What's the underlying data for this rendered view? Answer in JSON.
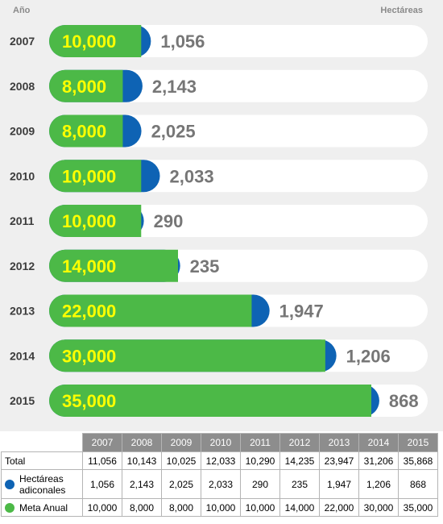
{
  "chart_data": {
    "type": "bar",
    "orientation": "horizontal",
    "stacked": true,
    "header_left": "Año",
    "header_right": "Hectáreas",
    "categories": [
      "2007",
      "2008",
      "2009",
      "2010",
      "2011",
      "2012",
      "2013",
      "2014",
      "2015"
    ],
    "series": [
      {
        "name": "Meta Anual",
        "values": [
          10000,
          8000,
          8000,
          10000,
          10000,
          14000,
          22000,
          30000,
          35000
        ],
        "labels": [
          "10,000",
          "8,000",
          "8,000",
          "10,000",
          "10,000",
          "14,000",
          "22,000",
          "30,000",
          "35,000"
        ],
        "color": "#4cb947",
        "label_color": "#ffff00"
      },
      {
        "name": "Hectáreas adicionales",
        "values": [
          1056,
          2143,
          2025,
          2033,
          290,
          235,
          1947,
          1206,
          868
        ],
        "labels": [
          "1,056",
          "2,143",
          "2,025",
          "2,033",
          "290",
          "235",
          "1,947",
          "1,206",
          "868"
        ],
        "color": "#0e63b4",
        "label_color": "#767676"
      }
    ],
    "xlim": [
      0,
      40000
    ],
    "track_color": "#ffffff",
    "background_color": "#efefef",
    "grid": false
  },
  "table": {
    "row_labels": {
      "total": "Total",
      "adicionales_line1": "Hectáreas",
      "adicionales_line2": "adiconales",
      "meta": "Meta Anual"
    },
    "totals": [
      "11,056",
      "10,143",
      "10,025",
      "12,033",
      "10,290",
      "14,235",
      "23,947",
      "31,206",
      "35,868"
    ],
    "adicionales": [
      "1,056",
      "2,143",
      "2,025",
      "2,033",
      "290",
      "235",
      "1,947",
      "1,206",
      "868"
    ],
    "meta": [
      "10,000",
      "8,000",
      "8,000",
      "10,000",
      "10,000",
      "14,000",
      "22,000",
      "30,000",
      "35,000"
    ]
  }
}
